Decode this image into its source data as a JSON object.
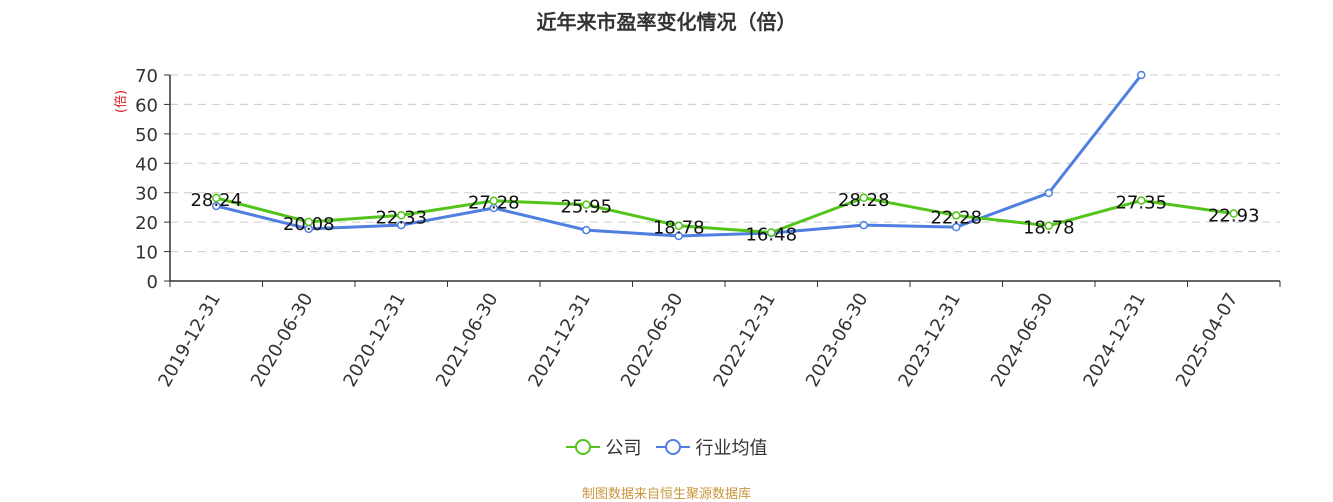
{
  "title": "近年来市盈率变化情况（倍）",
  "source": "制图数据来自恒生聚源数据库",
  "legend": [
    {
      "label": "公司",
      "color": "#52c41a",
      "icon": "line-circle-icon"
    },
    {
      "label": "行业均值",
      "color": "#4f7fe0",
      "icon": "line-circle-icon"
    }
  ],
  "y_axis_unit": "(倍)",
  "chart_data": {
    "type": "line",
    "title": "近年来市盈率变化情况（倍）",
    "xlabel": "",
    "ylabel": "(倍)",
    "ylim": [
      0,
      70
    ],
    "yticks": [
      0,
      10,
      20,
      30,
      40,
      50,
      60,
      70
    ],
    "grid": true,
    "legend_position": "bottom",
    "categories": [
      "2019-12-31",
      "2020-06-30",
      "2020-12-31",
      "2021-06-30",
      "2021-12-31",
      "2022-06-30",
      "2022-12-31",
      "2023-06-30",
      "2023-12-31",
      "2024-06-30",
      "2024-12-31",
      "2025-04-07"
    ],
    "series": [
      {
        "name": "公司",
        "color": "#52c41a",
        "values": [
          28.24,
          20.08,
          22.33,
          27.28,
          25.95,
          18.78,
          16.48,
          28.28,
          22.28,
          18.78,
          27.35,
          22.93
        ],
        "labels_shown": true
      },
      {
        "name": "行业均值",
        "color": "#4f7fe0",
        "values": [
          25.5,
          17.7,
          19.0,
          24.8,
          17.3,
          15.3,
          16.3,
          19.0,
          18.3,
          29.9,
          70.0,
          null
        ],
        "labels_shown": false
      }
    ]
  }
}
